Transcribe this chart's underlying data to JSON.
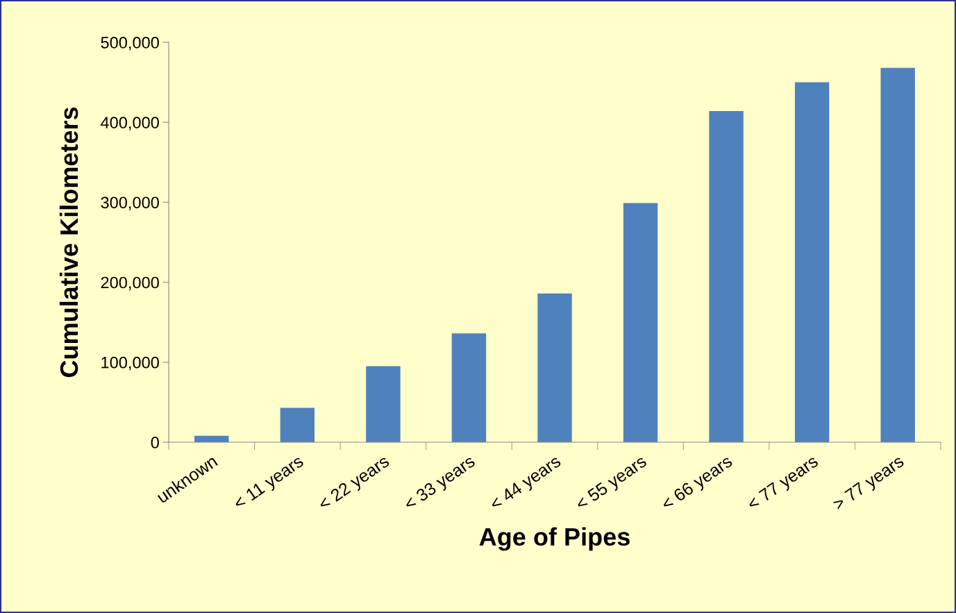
{
  "chart_data": {
    "type": "bar",
    "xlabel": "Age of Pipes",
    "ylabel": "Cumulative Kilometers",
    "categories": [
      "unknown",
      "< 11 years",
      "< 22 years",
      "< 33 years",
      "< 44 years",
      "< 55 years",
      "< 66 years",
      "< 77 years",
      "> 77 years"
    ],
    "values": [
      8000,
      43000,
      95000,
      136000,
      186000,
      299000,
      414000,
      450000,
      468000
    ],
    "color": "#4f81bd",
    "ylim": [
      0,
      500000
    ],
    "yticks": [
      {
        "value": 0,
        "label": "0"
      },
      {
        "value": 100000,
        "label": "100,000"
      },
      {
        "value": 200000,
        "label": "200,000"
      },
      {
        "value": 300000,
        "label": "300,000"
      },
      {
        "value": 400000,
        "label": "400,000"
      },
      {
        "value": 500000,
        "label": "500,000"
      }
    ],
    "grid": false,
    "legend": false
  }
}
